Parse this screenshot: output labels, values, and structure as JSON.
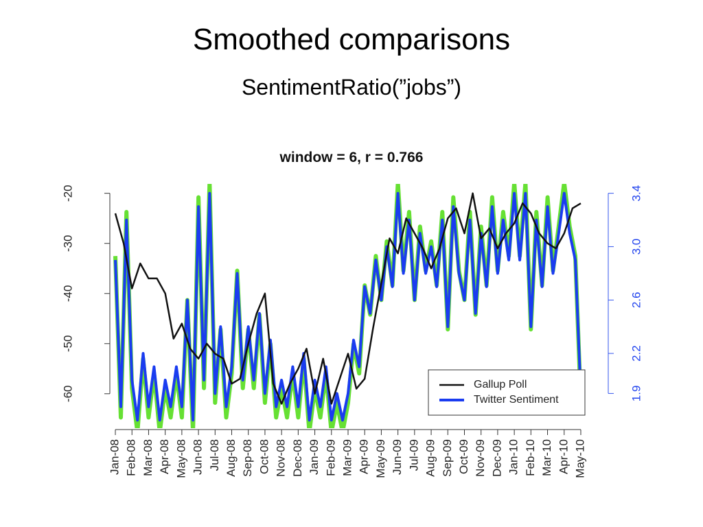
{
  "header": {
    "title": "Smoothed comparisons",
    "subtitle": "SentimentRatio(”jobs”)"
  },
  "chart_data": {
    "type": "line",
    "title": "window = 6, r = 0.766",
    "xlim": [
      -0.1,
      28.1
    ],
    "xticks": [
      {
        "value": 0,
        "label": "Jan-08"
      },
      {
        "value": 1,
        "label": "Feb-08"
      },
      {
        "value": 2,
        "label": "Mar-08"
      },
      {
        "value": 3,
        "label": "Apr-08"
      },
      {
        "value": 4,
        "label": "May-08"
      },
      {
        "value": 5,
        "label": "Jun-08"
      },
      {
        "value": 6,
        "label": "Jul-08"
      },
      {
        "value": 7,
        "label": "Aug-08"
      },
      {
        "value": 8,
        "label": "Sep-08"
      },
      {
        "value": 9,
        "label": "Oct-08"
      },
      {
        "value": 10,
        "label": "Nov-08"
      },
      {
        "value": 11,
        "label": "Dec-08"
      },
      {
        "value": 12,
        "label": "Jan-09"
      },
      {
        "value": 13,
        "label": "Feb-09"
      },
      {
        "value": 14,
        "label": "Mar-09"
      },
      {
        "value": 15,
        "label": "Apr-09"
      },
      {
        "value": 16,
        "label": "May-09"
      },
      {
        "value": 17,
        "label": "Jun-09"
      },
      {
        "value": 18,
        "label": "Jul-09"
      },
      {
        "value": 19,
        "label": "Aug-09"
      },
      {
        "value": 20,
        "label": "Sep-09"
      },
      {
        "value": 21,
        "label": "Oct-09"
      },
      {
        "value": 22,
        "label": "Nov-09"
      },
      {
        "value": 23,
        "label": "Dec-09"
      },
      {
        "value": 24,
        "label": "Jan-10"
      },
      {
        "value": 25,
        "label": "Feb-10"
      },
      {
        "value": 26,
        "label": "Mar-10"
      },
      {
        "value": 27,
        "label": "Apr-10"
      },
      {
        "value": 28,
        "label": "May-10"
      }
    ],
    "ylim": [
      -66.6,
      -18.4
    ],
    "yticks": [
      -60,
      -50,
      -40,
      -30,
      -20
    ],
    "y2lim": [
      1.65,
      3.46
    ],
    "y2ticks": [
      1.9,
      2.2,
      2.6,
      {
        "value": 3,
        "label": "3.0"
      },
      3.4
    ],
    "legend": "lower right",
    "series": [
      {
        "color": "#66e033",
        "axis": "y2",
        "x": [
          0,
          0.33,
          0.67,
          1,
          1.33,
          1.67,
          2,
          2.33,
          2.67,
          3,
          3.33,
          3.67,
          4,
          4.33,
          4.67,
          5,
          5.33,
          5.67,
          6,
          6.33,
          6.67,
          7,
          7.33,
          7.67,
          8,
          8.33,
          8.67,
          9,
          9.33,
          9.67,
          10,
          10.33,
          10.67,
          11,
          11.33,
          11.67,
          12,
          12.33,
          12.67,
          13,
          13.33,
          13.67,
          14,
          14.33,
          14.67,
          15,
          15.33,
          15.67,
          16,
          16.33,
          16.67,
          17,
          17.33,
          17.67,
          18,
          18.33,
          18.67,
          19,
          19.33,
          19.67,
          20,
          20.33,
          20.67,
          21,
          21.33,
          21.67,
          22,
          22.33,
          22.67,
          23,
          23.33,
          23.67,
          24,
          24.33,
          24.67,
          25,
          25.33,
          25.67,
          26,
          26.33,
          26.67,
          27,
          27.33,
          27.67,
          28
        ],
        "values": [
          2.93,
          1.72,
          3.26,
          1.94,
          1.61,
          2.16,
          1.72,
          2.05,
          1.61,
          1.94,
          1.72,
          2.05,
          1.72,
          2.6,
          1.61,
          3.37,
          1.94,
          3.48,
          1.83,
          2.38,
          1.72,
          2.05,
          2.82,
          1.94,
          2.38,
          1.94,
          2.49,
          1.83,
          2.27,
          1.72,
          1.94,
          1.72,
          2.05,
          1.72,
          2.16,
          1.61,
          1.94,
          1.72,
          2.05,
          1.61,
          1.83,
          1.61,
          1.83,
          2.27,
          2.05,
          2.71,
          2.49,
          2.93,
          2.6,
          3.04,
          2.71,
          3.48,
          2.82,
          3.26,
          2.6,
          3.15,
          2.82,
          3.04,
          2.71,
          3.26,
          2.38,
          3.37,
          2.82,
          2.6,
          3.26,
          2.49,
          3.15,
          2.71,
          3.37,
          2.82,
          3.26,
          2.93,
          3.48,
          2.93,
          3.48,
          2.38,
          3.26,
          2.71,
          3.37,
          2.82,
          3.15,
          3.48,
          3.15,
          2.93,
          1.83
        ]
      },
      {
        "name": "Gallup Poll",
        "color": "#111111",
        "x": [
          0,
          0.5,
          1,
          1.5,
          2,
          2.5,
          3,
          3.5,
          4,
          4.5,
          5,
          5.5,
          6,
          6.5,
          7,
          7.5,
          8,
          8.5,
          9,
          9.5,
          10,
          10.5,
          11,
          11.5,
          12,
          12.5,
          13,
          13.5,
          14,
          14.5,
          15,
          15.5,
          16,
          16.5,
          17,
          17.5,
          18,
          18.5,
          19,
          19.5,
          20,
          20.5,
          21,
          21.5,
          22,
          22.5,
          23,
          23.5,
          24,
          24.5,
          25,
          25.5,
          26,
          26.5,
          27,
          27.5,
          28
        ],
        "values": [
          -24,
          -30,
          -39,
          -34,
          -37,
          -37,
          -40,
          -49,
          -46,
          -51,
          -53,
          -50,
          -52,
          -53,
          -58,
          -57,
          -50,
          -44,
          -40,
          -58,
          -62,
          -58,
          -55,
          -51,
          -60,
          -53,
          -62,
          -57,
          -52,
          -59,
          -57,
          -47,
          -38,
          -29,
          -32,
          -25,
          -28,
          -31,
          -35,
          -31,
          -25,
          -23,
          -28,
          -20,
          -29,
          -27,
          -31,
          -28,
          -26,
          -22,
          -24,
          -28,
          -30,
          -31,
          -28,
          -23,
          -22
        ]
      },
      {
        "name": "Twitter Sentiment",
        "color": "#1a3cf0",
        "axis": "y2",
        "x": [
          0,
          0.33,
          0.67,
          1,
          1.33,
          1.67,
          2,
          2.33,
          2.67,
          3,
          3.33,
          3.67,
          4,
          4.33,
          4.67,
          5,
          5.33,
          5.67,
          6,
          6.33,
          6.67,
          7,
          7.33,
          7.67,
          8,
          8.33,
          8.67,
          9,
          9.33,
          9.67,
          10,
          10.33,
          10.67,
          11,
          11.33,
          11.67,
          12,
          12.33,
          12.67,
          13,
          13.33,
          13.67,
          14,
          14.33,
          14.67,
          15,
          15.33,
          15.67,
          16,
          16.33,
          16.67,
          17,
          17.33,
          17.67,
          18,
          18.33,
          18.67,
          19,
          19.33,
          19.67,
          20,
          20.33,
          20.67,
          21,
          21.33,
          21.67,
          22,
          22.33,
          22.67,
          23,
          23.33,
          23.67,
          24,
          24.33,
          24.67,
          25,
          25.33,
          25.67,
          26,
          26.33,
          26.67,
          27,
          27.33,
          27.67,
          28
        ],
        "values": [
          2.9,
          1.8,
          3.2,
          2.0,
          1.7,
          2.2,
          1.8,
          2.1,
          1.7,
          2.0,
          1.8,
          2.1,
          1.8,
          2.6,
          1.7,
          3.3,
          2.0,
          3.4,
          1.9,
          2.4,
          1.8,
          2.1,
          2.8,
          2.0,
          2.4,
          2.0,
          2.5,
          1.9,
          2.3,
          1.8,
          2.0,
          1.8,
          2.1,
          1.8,
          2.2,
          1.7,
          2.0,
          1.8,
          2.1,
          1.7,
          1.9,
          1.7,
          1.9,
          2.3,
          2.1,
          2.7,
          2.5,
          2.9,
          2.6,
          3.0,
          2.7,
          3.4,
          2.8,
          3.2,
          2.6,
          3.1,
          2.8,
          3.0,
          2.7,
          3.2,
          2.4,
          3.3,
          2.8,
          2.6,
          3.2,
          2.5,
          3.1,
          2.7,
          3.3,
          2.8,
          3.2,
          2.9,
          3.4,
          2.9,
          3.4,
          2.4,
          3.2,
          2.7,
          3.3,
          2.8,
          3.1,
          3.4,
          3.1,
          2.9,
          1.9
        ]
      }
    ]
  }
}
